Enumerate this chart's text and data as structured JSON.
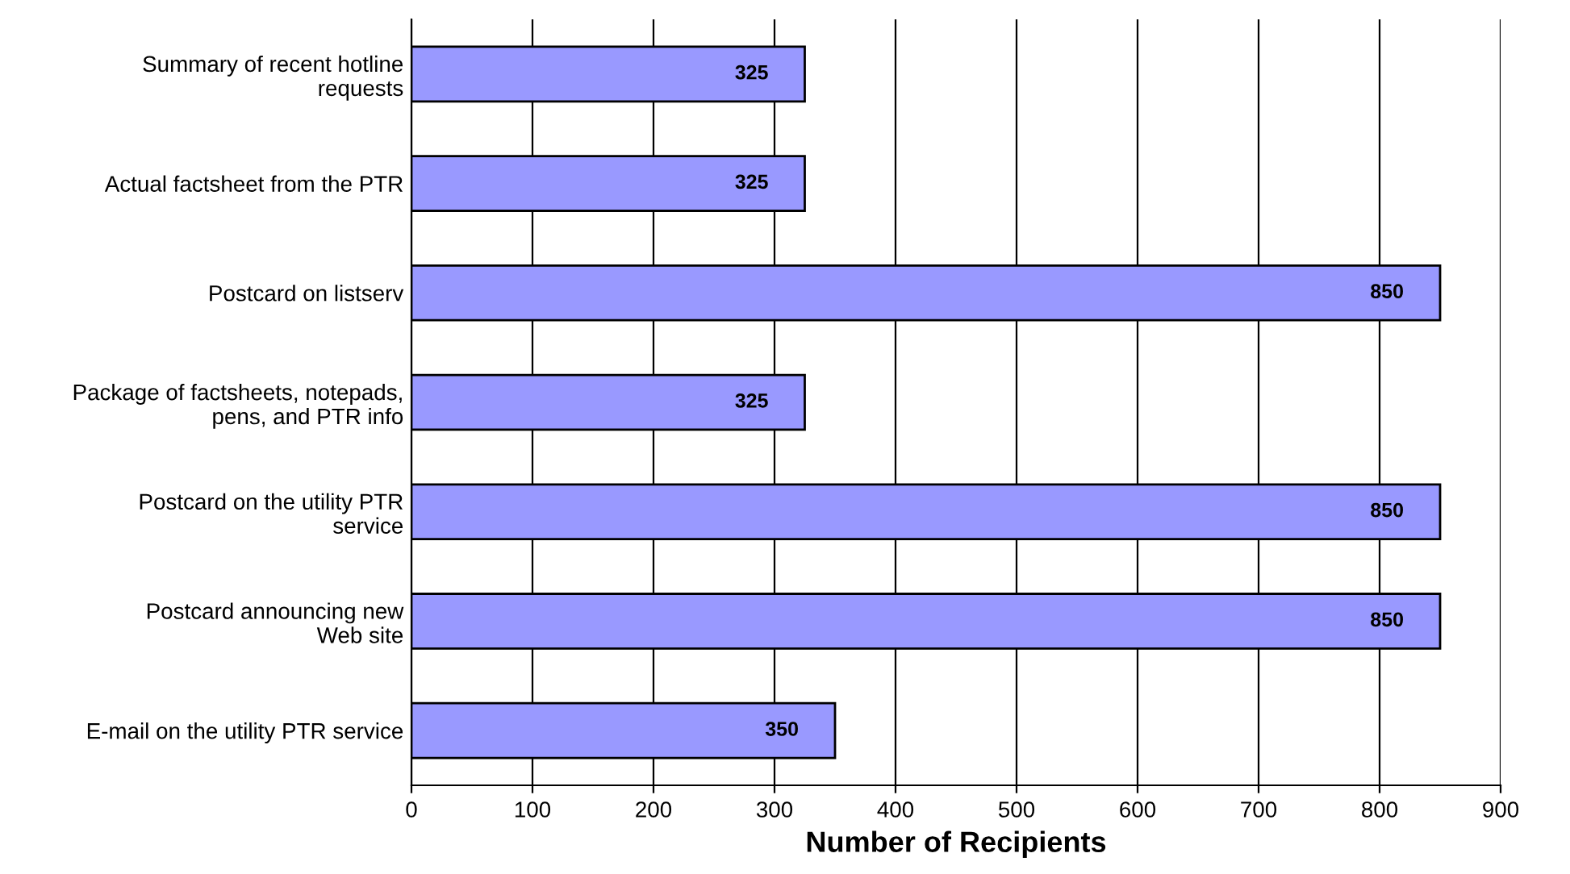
{
  "chart_data": {
    "type": "bar",
    "orientation": "horizontal",
    "xlabel": "Number of Recipients",
    "categories": [
      "Summary of recent hotline\nrequests",
      "Actual factsheet from the PTR",
      "Postcard on listserv",
      "Package of factsheets, notepads,\npens, and PTR info",
      "Postcard on the utility PTR\nservice",
      "Postcard announcing new\nWeb site",
      "E-mail on the utility PTR service"
    ],
    "values": [
      325,
      325,
      850,
      325,
      850,
      850,
      350
    ],
    "color": "#9999ff",
    "data_labels": true,
    "xlim": [
      0,
      900
    ],
    "xticks": [
      0,
      100,
      200,
      300,
      400,
      500,
      600,
      700,
      800,
      900
    ],
    "grid": "x"
  }
}
